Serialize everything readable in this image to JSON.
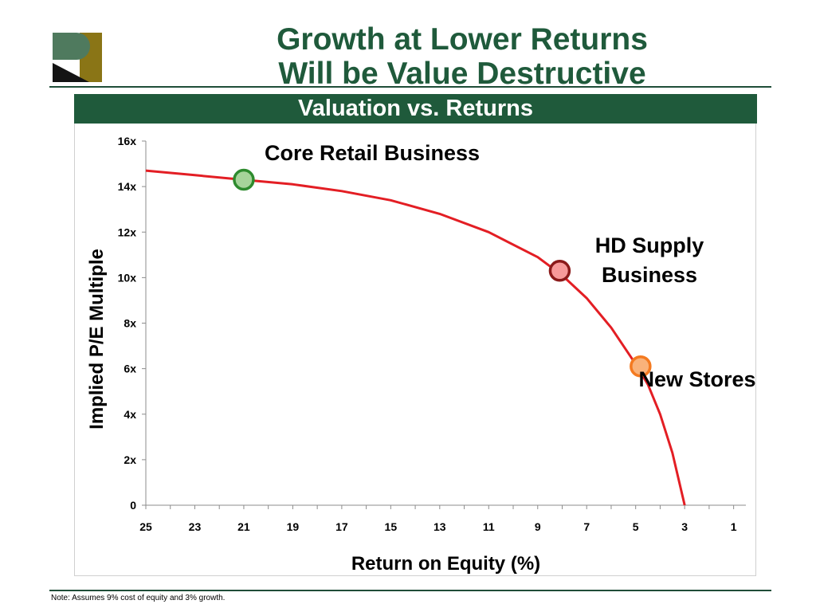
{
  "header": {
    "title_line1": "Growth at Lower Returns",
    "title_line2": "Will be Value Destructive",
    "subtitle": "Valuation vs. Returns"
  },
  "footer": {
    "note": "Note: Assumes 9% cost of equity and 3% growth."
  },
  "colors": {
    "brand_green": "#1f5a3b",
    "curve": "#e31e24",
    "logo_olive": "#8a7516",
    "logo_sage": "#4f7a5e"
  },
  "chart_data": {
    "type": "line",
    "title": "",
    "xlabel": "Return on Equity (%)",
    "ylabel": "Implied P/E Multiple",
    "x_reversed": true,
    "xlim": [
      25,
      0.5
    ],
    "ylim": [
      0,
      16
    ],
    "x_ticks": [
      25,
      23,
      21,
      19,
      17,
      15,
      13,
      11,
      9,
      7,
      5,
      3,
      1
    ],
    "y_ticks": [
      {
        "value": 0,
        "label": "0"
      },
      {
        "value": 2,
        "label": "2x"
      },
      {
        "value": 4,
        "label": "4x"
      },
      {
        "value": 6,
        "label": "6x"
      },
      {
        "value": 8,
        "label": "8x"
      },
      {
        "value": 10,
        "label": "10x"
      },
      {
        "value": 12,
        "label": "12x"
      },
      {
        "value": 14,
        "label": "14x"
      },
      {
        "value": 16,
        "label": "16x"
      }
    ],
    "grid": false,
    "series": [
      {
        "color": "#e31e24",
        "x": [
          25,
          23,
          21,
          19,
          17,
          15,
          13,
          11,
          9,
          8,
          7,
          6,
          5,
          4.5,
          4,
          3.5,
          3
        ],
        "y": [
          14.7,
          14.5,
          14.3,
          14.1,
          13.8,
          13.4,
          12.8,
          12.0,
          10.9,
          10.1,
          9.1,
          7.8,
          6.2,
          5.3,
          4.0,
          2.3,
          0
        ]
      }
    ],
    "highlights": [
      {
        "label": "Core Retail Business",
        "x": 21,
        "y": 14.3,
        "fill": "#a6d49a",
        "stroke": "#2e8b2e"
      },
      {
        "label": "HD Supply Business",
        "x": 8.1,
        "y": 10.3,
        "fill": "#f79a9a",
        "stroke": "#8b1a1a"
      },
      {
        "label": "New Stores",
        "x": 4.8,
        "y": 6.1,
        "fill": "#f9b27a",
        "stroke": "#f47a20"
      }
    ]
  }
}
